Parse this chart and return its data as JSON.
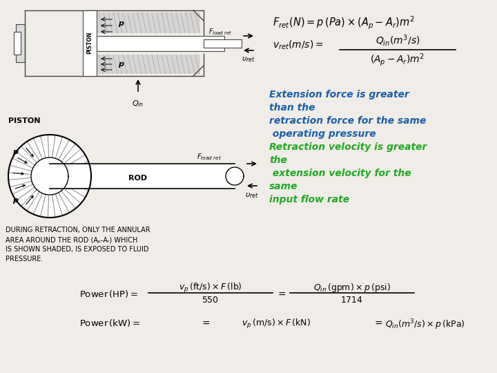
{
  "bg_color": "#f0ede8",
  "text_lines": [
    "Extension force is greater",
    "than the",
    "retraction force for the same",
    " operating pressure",
    "Retraction velocity is greater",
    "the",
    " extension velocity for the",
    "same",
    "input flow rate"
  ],
  "text_colors": [
    "#1a5fa8",
    "#1a5fa8",
    "#1a5fa8",
    "#1a5fa8",
    "#22a822",
    "#22a822",
    "#22a822",
    "#22a822",
    "#22a822"
  ]
}
